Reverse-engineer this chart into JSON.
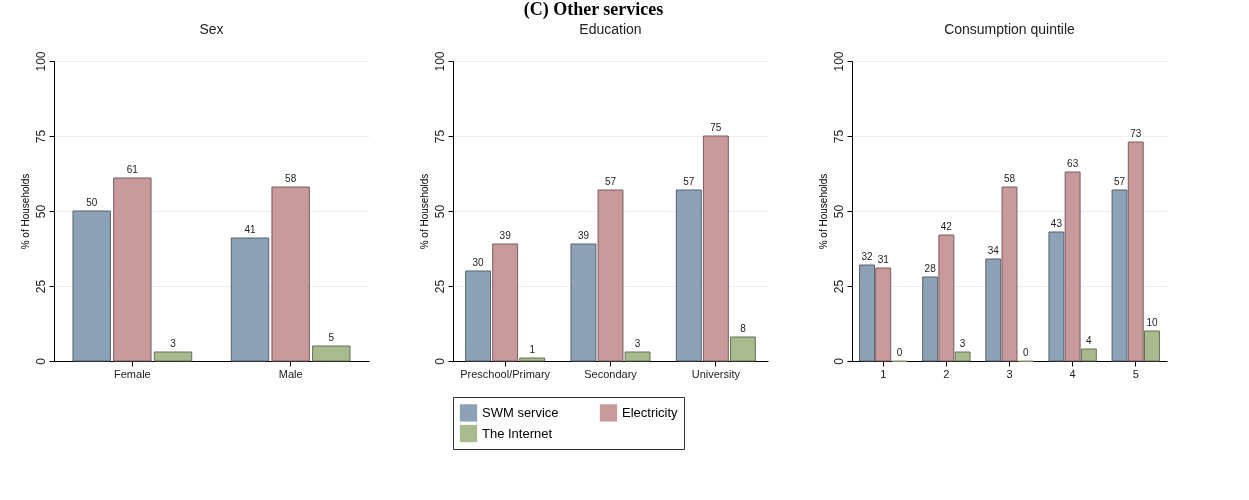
{
  "chart_data": [
    {
      "type": "bar",
      "title": "Sex",
      "ylabel": "% of Households",
      "categories": [
        "Female",
        "Male"
      ],
      "ylim": [
        0,
        100
      ],
      "yticks": [
        0,
        25,
        50,
        75,
        100
      ],
      "grid": "y",
      "data_labels": true,
      "legend": false,
      "annotations": [
        "(C) Other services"
      ],
      "series": [
        {
          "color": "#8da2b6",
          "values": [
            50,
            41
          ]
        },
        {
          "color": "#c99a9c",
          "values": [
            61,
            58
          ]
        },
        {
          "color": "#a8bb8e",
          "values": [
            3,
            5
          ]
        }
      ]
    },
    {
      "type": "bar",
      "title": "Education",
      "ylabel": "% of Households",
      "categories": [
        "Preschool/Primary",
        "Secondary",
        "University"
      ],
      "ylim": [
        0,
        100
      ],
      "yticks": [
        0,
        25,
        50,
        75,
        100
      ],
      "grid": "y",
      "data_labels": true,
      "legend": "bottom",
      "series": [
        {
          "name": "SWM service",
          "color": "#8da2b6",
          "values": [
            30,
            39,
            57
          ]
        },
        {
          "name": "Electricity",
          "color": "#c99a9c",
          "values": [
            39,
            57,
            75
          ]
        },
        {
          "name": "The Internet",
          "color": "#a8bb8e",
          "values": [
            1,
            3,
            8
          ]
        }
      ]
    },
    {
      "type": "bar",
      "title": "Consumption quintile",
      "ylabel": "% of Households",
      "categories": [
        "1",
        "2",
        "3",
        "4",
        "5"
      ],
      "ylim": [
        0,
        100
      ],
      "yticks": [
        0,
        25,
        50,
        75,
        100
      ],
      "grid": "y",
      "data_labels": true,
      "legend": false,
      "series": [
        {
          "color": "#8da2b6",
          "values": [
            32,
            28,
            34,
            43,
            57
          ]
        },
        {
          "color": "#c99a9c",
          "values": [
            31,
            42,
            58,
            63,
            73
          ]
        },
        {
          "color": "#a8bb8e",
          "values": [
            0,
            3,
            0,
            4,
            10
          ]
        }
      ]
    }
  ]
}
